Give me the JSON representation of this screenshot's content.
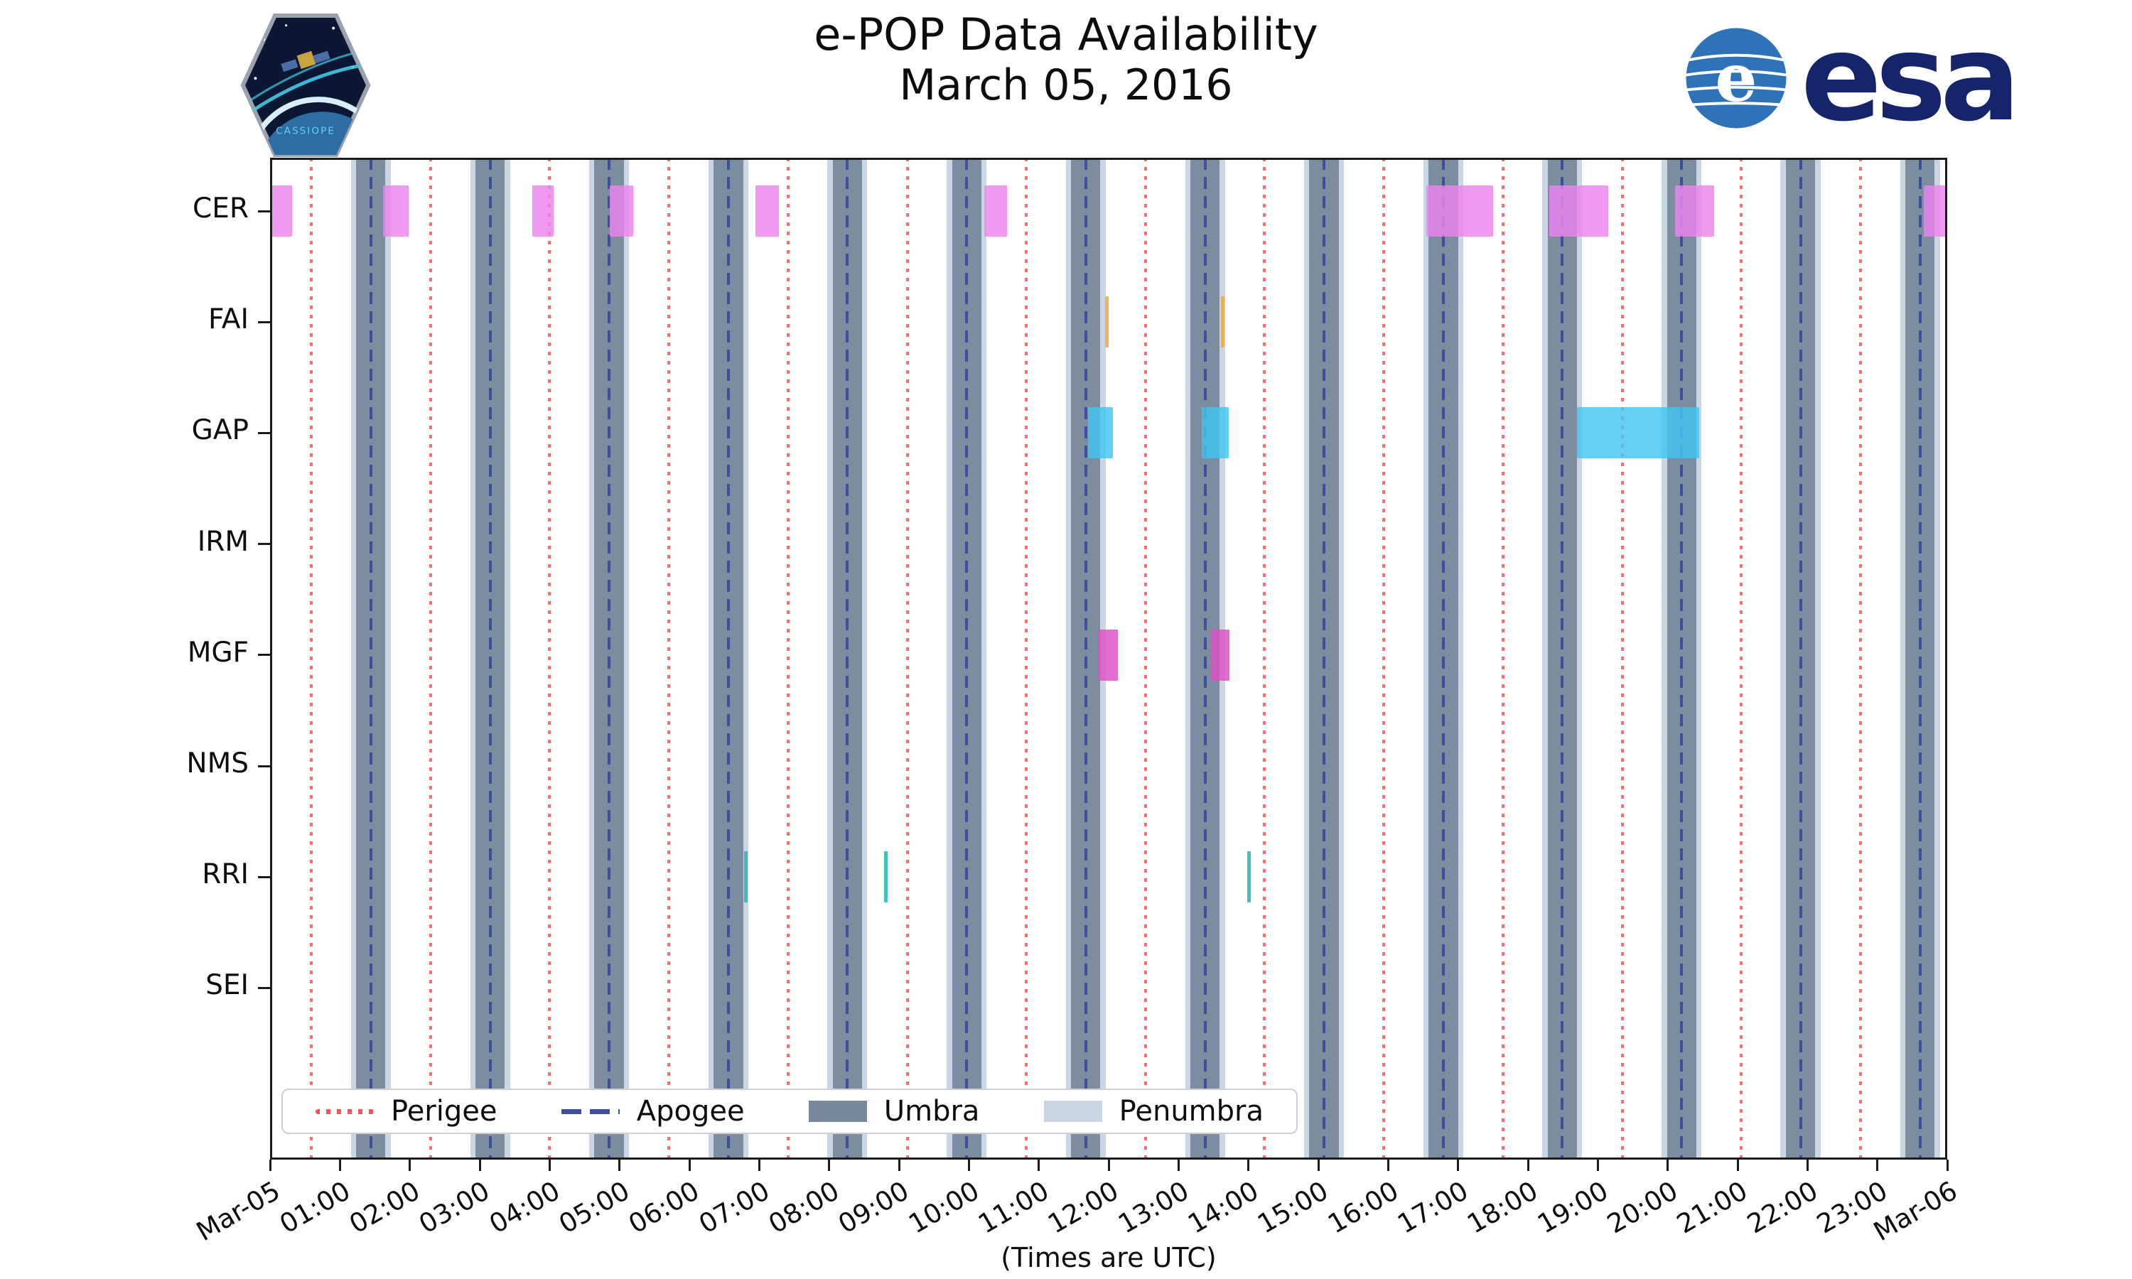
{
  "header": {
    "title": "e-POP Data Availability",
    "subtitle": "March 05, 2016",
    "cassiope_patch_label": "CASSIOPE",
    "esa_logo_text": "esa"
  },
  "xlabel": "(Times are UTC)",
  "chart_data": {
    "type": "timeline",
    "title": "e-POP Data Availability",
    "subtitle": "March 05, 2016",
    "xlabel": "(Times are UTC)",
    "x_range_hours": [
      0,
      24
    ],
    "x_tick_labels": [
      "Mar-05",
      "01:00",
      "02:00",
      "03:00",
      "04:00",
      "05:00",
      "06:00",
      "07:00",
      "08:00",
      "09:00",
      "10:00",
      "11:00",
      "12:00",
      "13:00",
      "14:00",
      "15:00",
      "16:00",
      "17:00",
      "18:00",
      "19:00",
      "20:00",
      "21:00",
      "22:00",
      "23:00",
      "Mar-06"
    ],
    "rows": [
      "CER",
      "FAI",
      "GAP",
      "IRM",
      "MGF",
      "NMS",
      "RRI",
      "SEI"
    ],
    "row_colors": {
      "CER": "#ee82ee",
      "FAI": "#f2a43a",
      "GAP": "#41c6f2",
      "IRM": "#999999",
      "MGF": "#de4ec4",
      "NMS": "#999999",
      "RRI": "#17b3ae",
      "SEI": "#999999"
    },
    "bars_hours": {
      "CER": [
        [
          0.02,
          0.32
        ],
        [
          1.62,
          1.98
        ],
        [
          3.75,
          4.06
        ],
        [
          4.86,
          5.2
        ],
        [
          6.95,
          7.28
        ],
        [
          10.22,
          10.55
        ],
        [
          16.55,
          17.5
        ],
        [
          18.3,
          19.15
        ],
        [
          20.1,
          20.66
        ],
        [
          23.66,
          24.0
        ]
      ],
      "FAI": [
        [
          11.95,
          12.01
        ],
        [
          13.61,
          13.67
        ]
      ],
      "GAP": [
        [
          11.7,
          12.06
        ],
        [
          13.33,
          13.72
        ],
        [
          18.7,
          20.45
        ]
      ],
      "IRM": [],
      "MGF": [
        [
          11.85,
          12.13
        ],
        [
          13.45,
          13.73
        ]
      ],
      "NMS": [],
      "RRI": [
        [
          6.78,
          6.83
        ],
        [
          8.79,
          8.84
        ],
        [
          13.98,
          14.03
        ]
      ],
      "SEI": []
    },
    "perigee_hours": [
      0.59,
      2.3,
      4.0,
      5.71,
      7.41,
      9.12,
      10.82,
      12.53,
      14.23,
      15.94,
      17.64,
      19.35,
      21.05,
      22.76
    ],
    "apogee_hours": [
      1.44,
      3.15,
      4.85,
      6.56,
      8.26,
      9.97,
      11.67,
      13.38,
      15.08,
      16.79,
      18.49,
      20.2,
      21.9,
      23.61
    ],
    "umbra_halfwidth_hours": 0.21,
    "penumbra_halfwidth_hours": 0.285,
    "colors": {
      "umbra": "#78899c",
      "penumbra": "#c9d6e3",
      "apogee": "#3e4da0",
      "perigee": "#ff5353",
      "axis": "#1c1c1c"
    },
    "legend": [
      {
        "label": "Perigee",
        "swatch": "dotted-line",
        "color": "#ff5353"
      },
      {
        "label": "Apogee",
        "swatch": "dashed-line",
        "color": "#3e4da0"
      },
      {
        "label": "Umbra",
        "swatch": "box",
        "color": "#78899c"
      },
      {
        "label": "Penumbra",
        "swatch": "box",
        "color": "#c9d6e3"
      }
    ],
    "legend_position": "lower left",
    "grid": false
  }
}
